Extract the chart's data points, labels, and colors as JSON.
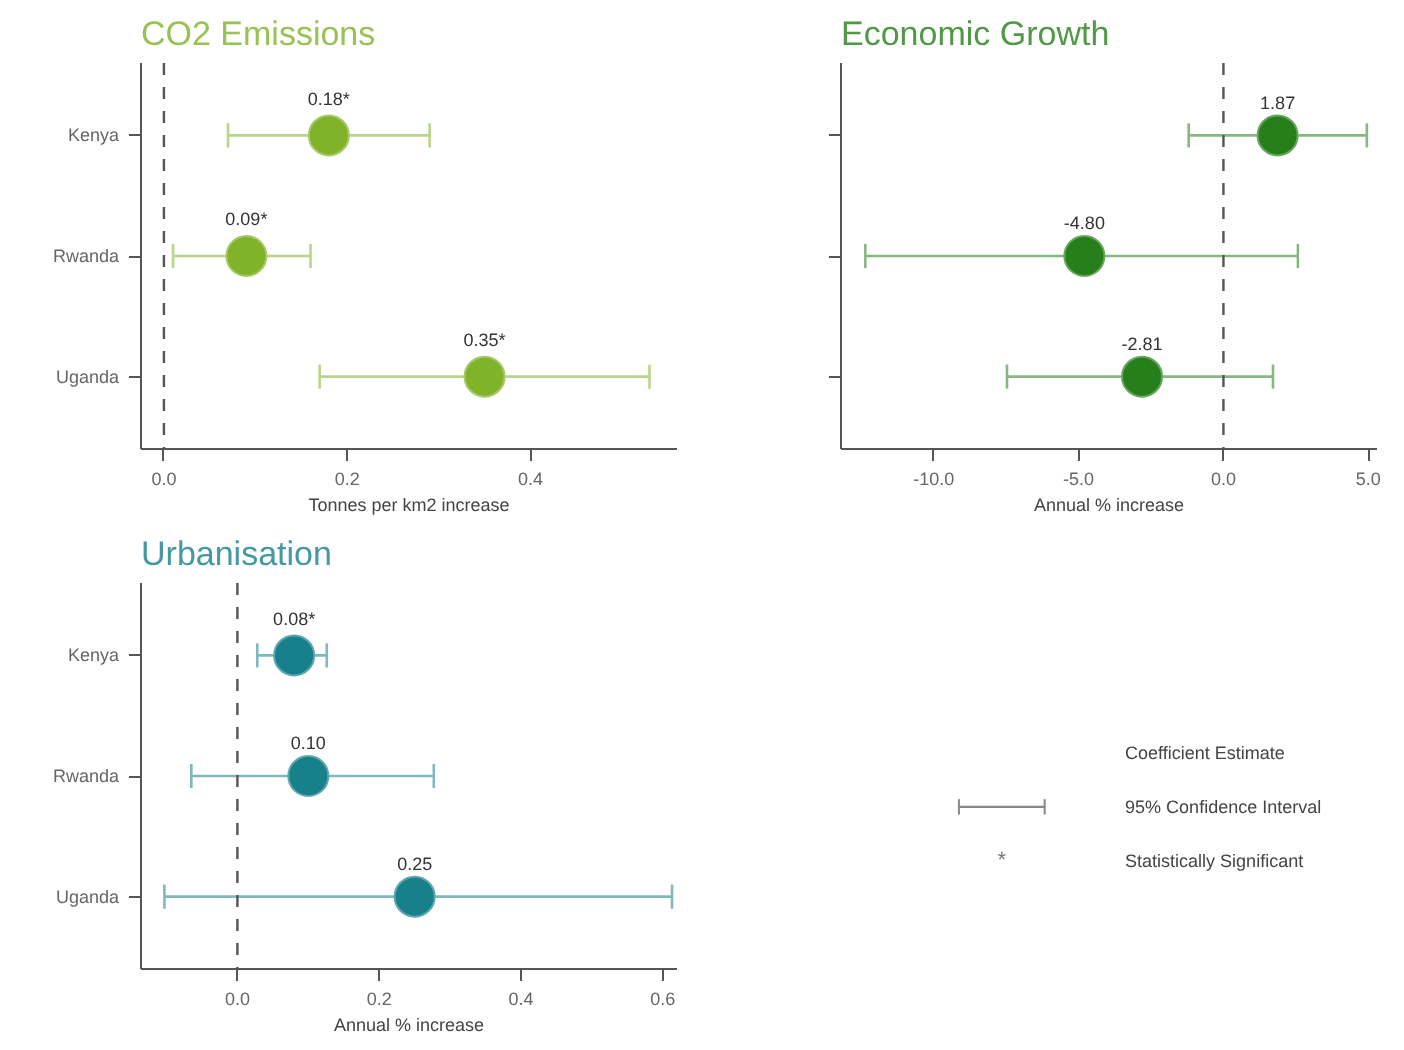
{
  "chart_data": [
    {
      "type": "scatter",
      "title": "CO2 Emissions",
      "xlabel": "Tonnes per km2 increase",
      "orientation": "horizontal",
      "categories": [
        "Kenya",
        "Rwanda",
        "Uganda"
      ],
      "series": [
        {
          "color": "#80b32a",
          "values": [
            0.18,
            0.09,
            0.35
          ],
          "errors": [
            [
              0.07,
              0.29
            ],
            [
              0.01,
              0.16
            ],
            [
              0.17,
              0.53
            ]
          ],
          "value_labels": [
            "0.18*",
            "0.09*",
            "0.35*"
          ]
        }
      ],
      "xlim": [
        -0.025,
        0.56
      ],
      "xticks": [
        {
          "value": 0,
          "label": "0.0"
        },
        0.2,
        0.4
      ],
      "ref_lines": [
        {
          "axis": "x",
          "value": 0,
          "line_style": "dashed"
        }
      ],
      "marker": "circle",
      "grid": false
    },
    {
      "type": "scatter",
      "title": "Economic Growth",
      "xlabel": "Annual % increase",
      "orientation": "horizontal",
      "categories": [
        null,
        null,
        null
      ],
      "series": [
        {
          "color": "#267f1a",
          "values": [
            1.87,
            -4.8,
            -2.81
          ],
          "errors": [
            [
              -1.2,
              4.95
            ],
            [
              -12.36,
              2.57
            ],
            [
              -7.47,
              1.71
            ]
          ],
          "value_labels": [
            "1.87",
            "-4.80",
            "-2.81"
          ]
        }
      ],
      "xlim": [
        -13.2,
        5.3
      ],
      "xticks": [
        {
          "value": -10,
          "label": "-10.0"
        },
        {
          "value": -5,
          "label": "-5.0"
        },
        {
          "value": 0,
          "label": "0.0"
        },
        {
          "value": 5,
          "label": "5.0"
        }
      ],
      "ref_lines": [
        {
          "axis": "x",
          "value": 0,
          "line_style": "dashed"
        }
      ],
      "tick_labels": "x",
      "marker": "circle",
      "grid": false
    },
    {
      "type": "scatter",
      "title": "Urbanisation",
      "xlabel": "Annual % increase",
      "orientation": "horizontal",
      "categories": [
        "Kenya",
        "Rwanda",
        "Uganda"
      ],
      "series": [
        {
          "color": "#17808a",
          "values": [
            0.08,
            0.1,
            0.25
          ],
          "errors": [
            [
              0.028,
              0.126
            ],
            [
              -0.065,
              0.277
            ],
            [
              -0.103,
              0.613
            ]
          ],
          "value_labels": [
            "0.08*",
            "0.10",
            "0.25"
          ]
        }
      ],
      "xlim": [
        -0.136,
        0.62
      ],
      "xticks": [
        {
          "value": 0,
          "label": "0.0"
        },
        0.2,
        0.4,
        0.6
      ],
      "ref_lines": [
        {
          "axis": "x",
          "value": 0,
          "line_style": "dashed"
        }
      ],
      "marker": "circle",
      "grid": false
    },
    {
      "type": "other",
      "annotations": [
        "Coefficient Estimate",
        "95% Confidence Interval",
        "*",
        "Statistically Significant"
      ]
    }
  ]
}
